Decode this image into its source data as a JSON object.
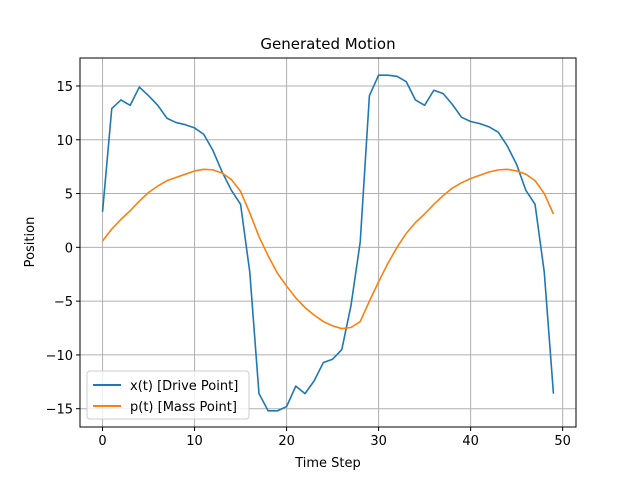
{
  "chart_data": {
    "type": "line",
    "title": "Generated Motion",
    "xlabel": "Time Step",
    "ylabel": "Position",
    "xlim": [
      -2.45,
      51.45
    ],
    "ylim": [
      -16.7,
      17.6
    ],
    "xticks": [
      0,
      10,
      20,
      30,
      40,
      50
    ],
    "yticks": [
      -15,
      -10,
      -5,
      0,
      5,
      10,
      15
    ],
    "grid": true,
    "legend_position": "lower-left",
    "x": [
      0,
      1,
      2,
      3,
      4,
      5,
      6,
      7,
      8,
      9,
      10,
      11,
      12,
      13,
      14,
      15,
      16,
      17,
      18,
      19,
      20,
      21,
      22,
      23,
      24,
      25,
      26,
      27,
      28,
      29,
      30,
      31,
      32,
      33,
      34,
      35,
      36,
      37,
      38,
      39,
      40,
      41,
      42,
      43,
      44,
      45,
      46,
      47,
      48,
      49
    ],
    "series": [
      {
        "name": "x(t) [Drive Point]",
        "color": "#1f77b4",
        "values": [
          3.3,
          12.9,
          13.7,
          13.2,
          14.9,
          14.1,
          13.2,
          12.0,
          11.6,
          11.4,
          11.1,
          10.5,
          9.0,
          7.0,
          5.3,
          4.0,
          -2.3,
          -13.6,
          -15.2,
          -15.2,
          -14.8,
          -12.9,
          -13.6,
          -12.4,
          -10.7,
          -10.4,
          -9.5,
          -5.4,
          0.5,
          14.1,
          16.0,
          16.0,
          15.9,
          15.4,
          13.7,
          13.2,
          14.6,
          14.3,
          13.3,
          12.1,
          11.7,
          11.5,
          11.2,
          10.7,
          9.4,
          7.7,
          5.3,
          4.0,
          -2.3,
          -13.6
        ]
      },
      {
        "name": "p(t) [Mass Point]",
        "color": "#ff7f0e",
        "values": [
          0.6,
          1.7,
          2.6,
          3.4,
          4.3,
          5.1,
          5.7,
          6.2,
          6.5,
          6.8,
          7.1,
          7.25,
          7.2,
          6.9,
          6.3,
          5.2,
          3.2,
          1.0,
          -0.8,
          -2.4,
          -3.6,
          -4.7,
          -5.6,
          -6.3,
          -6.9,
          -7.3,
          -7.55,
          -7.45,
          -6.9,
          -5.0,
          -3.2,
          -1.5,
          0.0,
          1.3,
          2.3,
          3.1,
          4.0,
          4.8,
          5.5,
          6.0,
          6.4,
          6.7,
          7.0,
          7.2,
          7.25,
          7.1,
          6.8,
          6.2,
          5.0,
          3.1
        ]
      }
    ]
  }
}
